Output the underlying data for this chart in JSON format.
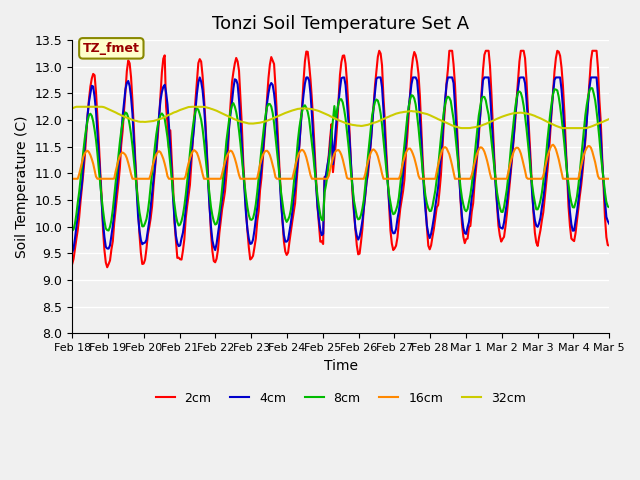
{
  "title": "Tonzi Soil Temperature Set A",
  "xlabel": "Time",
  "ylabel": "Soil Temperature (C)",
  "ylim": [
    8.0,
    13.5
  ],
  "legend_label": "TZ_fmet",
  "series_labels": [
    "2cm",
    "4cm",
    "8cm",
    "16cm",
    "32cm"
  ],
  "series_colors": [
    "#ff0000",
    "#0000cc",
    "#00bb00",
    "#ff8800",
    "#cccc00"
  ],
  "x_tick_labels": [
    "Feb 18",
    "Feb 19",
    "Feb 20",
    "Feb 21",
    "Feb 22",
    "Feb 23",
    "Feb 24",
    "Feb 25",
    "Feb 26",
    "Feb 27",
    "Feb 28",
    "Mar 1",
    "Mar 2",
    "Mar 3",
    "Mar 4",
    "Mar 5"
  ],
  "bg_color": "#e8e8e8",
  "plot_bg": "#f0f0f0",
  "linewidth": 1.5,
  "title_fontsize": 13,
  "axis_fontsize": 9,
  "label_fontsize": 10
}
